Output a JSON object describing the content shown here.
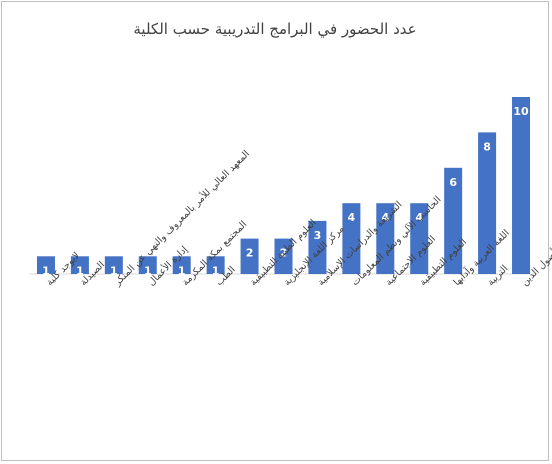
{
  "chart_data": {
    "type": "bar",
    "title": "عدد الحضور في البرامج التدريبية حسب الكلية",
    "xlabel": "",
    "ylabel": "",
    "ylim": [
      0,
      10
    ],
    "grid": false,
    "legend": "none",
    "bar_color": "#4472c4",
    "categories": [
      "لايوجد كلية",
      "الصيدلة",
      "المعهد العالي للأمر بالمعروف والنهي عن المنكر",
      "إدارة الأعمال",
      "المجتمع بمكة المكرمة",
      "الطب",
      "العلوم الطبية التطبيقية",
      "مركز اللغة الإنجليزية",
      "الشريعة والدراسات الإسلامية",
      "الحاسب الآلي ونظم المعلومات",
      "العلوم الاجتماعية",
      "العلوم التطبيقية",
      "اللغة العربية وآدابها",
      "التربية",
      "الدعوة وأصول الدين"
    ],
    "values": [
      1,
      1,
      1,
      1,
      1,
      1,
      2,
      2,
      3,
      4,
      4,
      4,
      6,
      8,
      10
    ]
  }
}
